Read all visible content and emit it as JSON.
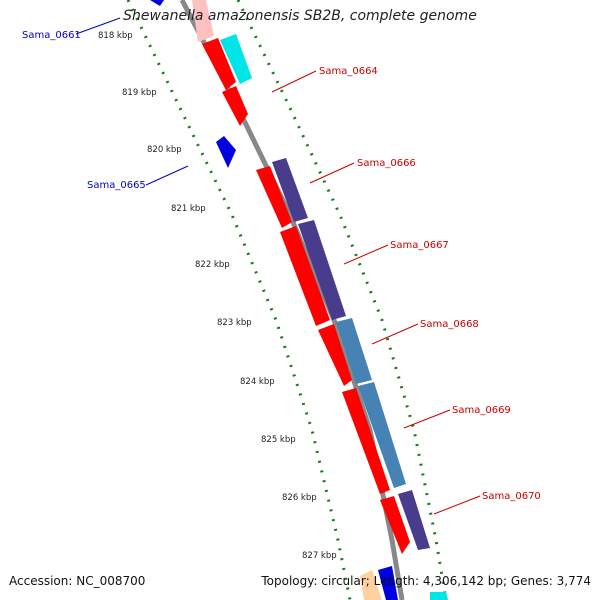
{
  "title": "Shewanella amazonensis SB2B, complete genome",
  "footer": {
    "accession": "Accession: NC_008700",
    "summary": "Topology: circular; Length: 4,306,142 bp; Genes: 3,774"
  },
  "ruler": {
    "ticks": [
      "818 kbp",
      "819 kbp",
      "820 kbp",
      "821 kbp",
      "822 kbp",
      "823 kbp",
      "824 kbp",
      "825 kbp",
      "826 kbp",
      "827 kbp"
    ]
  },
  "gene_labels": [
    {
      "text": "Sama_0661",
      "side": "left",
      "color": "#0000cc"
    },
    {
      "text": "Sama_0664",
      "side": "right",
      "color": "#cc0000"
    },
    {
      "text": "Sama_0665",
      "side": "left",
      "color": "#0000cc"
    },
    {
      "text": "Sama_0666",
      "side": "right",
      "color": "#cc0000"
    },
    {
      "text": "Sama_0667",
      "side": "right",
      "color": "#cc0000"
    },
    {
      "text": "Sama_0668",
      "side": "right",
      "color": "#cc0000"
    },
    {
      "text": "Sama_0669",
      "side": "right",
      "color": "#cc0000"
    },
    {
      "text": "Sama_0670",
      "side": "right",
      "color": "#cc0000"
    }
  ],
  "colors": {
    "backbone": "#888888",
    "tick": "#1a7a1a",
    "gene_forward": "#ff0000",
    "gene_reverse": "#0000e0",
    "cog_purple": "#4a3c8c",
    "cog_steel": "#4682b4",
    "cog_cyan": "#00e5e5",
    "pale_pink": "#ffc0c0"
  }
}
